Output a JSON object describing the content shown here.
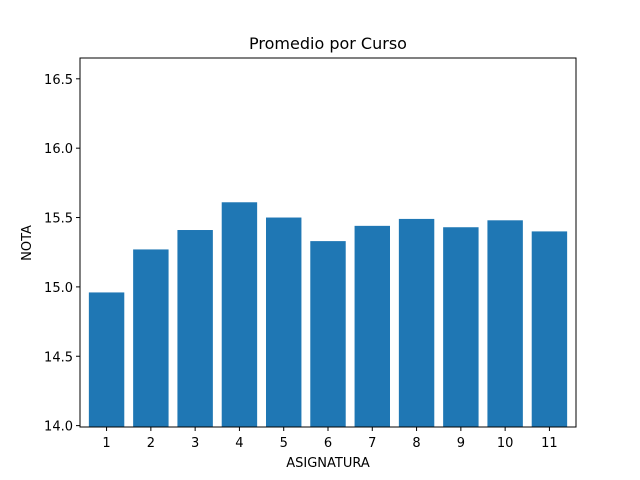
{
  "chart_data": {
    "type": "bar",
    "title": "Promedio por Curso",
    "xlabel": "ASIGNATURA",
    "ylabel": "NOTA",
    "categories": [
      "1",
      "2",
      "3",
      "4",
      "5",
      "6",
      "7",
      "8",
      "9",
      "10",
      "11"
    ],
    "values": [
      14.96,
      15.27,
      15.41,
      15.61,
      15.5,
      15.33,
      15.44,
      15.49,
      15.43,
      15.48,
      15.4
    ],
    "ylim": [
      13.99,
      16.65
    ],
    "yticks": [
      "14.0",
      "14.5",
      "15.0",
      "15.5",
      "16.0",
      "16.5"
    ],
    "grid": false,
    "bar_color": "#1f77b4"
  }
}
